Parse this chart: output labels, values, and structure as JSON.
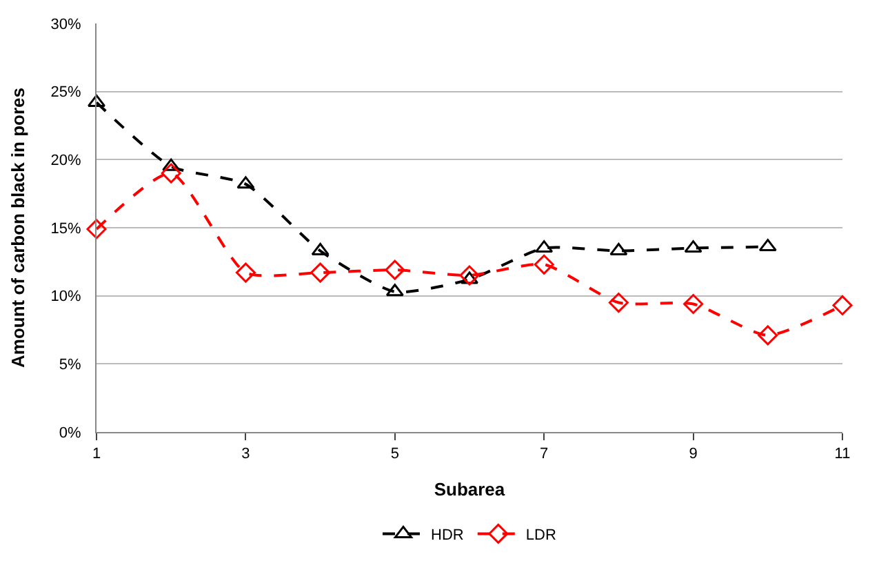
{
  "chart_data": {
    "type": "line",
    "xlabel": "Subarea",
    "ylabel": "Amount of carbon black in pores",
    "x": [
      1,
      2,
      3,
      4,
      5,
      6,
      7,
      8,
      9,
      10,
      11
    ],
    "series": [
      {
        "name": "HDR",
        "color": "#000000",
        "marker": "triangle",
        "values": [
          24.2,
          19.5,
          18.2,
          13.3,
          10.3,
          11.2,
          13.5,
          13.3,
          13.5,
          13.6,
          null
        ]
      },
      {
        "name": "LDR",
        "color": "#ff0000",
        "marker": "diamond",
        "values": [
          14.9,
          19.0,
          11.7,
          11.7,
          11.9,
          11.5,
          12.3,
          9.5,
          9.4,
          7.1,
          9.3
        ]
      }
    ],
    "line_style": "dashed",
    "xlim": [
      1,
      11
    ],
    "xticks": [
      1,
      3,
      5,
      7,
      9,
      11
    ],
    "ylim": [
      0,
      30
    ],
    "yticks": [
      {
        "value": 0,
        "label": "0%"
      },
      {
        "value": 5,
        "label": "5%"
      },
      {
        "value": 10,
        "label": "10%"
      },
      {
        "value": 15,
        "label": "15%"
      },
      {
        "value": 20,
        "label": "20%"
      },
      {
        "value": 25,
        "label": "25%"
      },
      {
        "value": 30,
        "label": "30%"
      }
    ],
    "grid": "y",
    "legend": "bottom"
  }
}
